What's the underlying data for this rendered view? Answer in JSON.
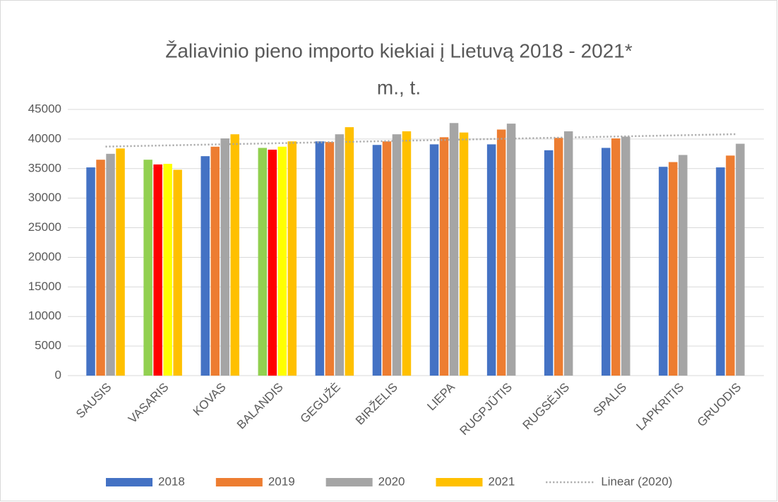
{
  "chart_data": {
    "type": "bar",
    "title_lines": [
      "Žaliavinio pieno importo kiekiai į Lietuvą 2018 - 2021*",
      "m., t."
    ],
    "categories": [
      "SAUSIS",
      "VASARIS",
      "KOVAS",
      "BALANDIS",
      "GEGUŽĖ",
      "BIRŽELIS",
      "LIEPA",
      "RUGPJŪTIS",
      "RUGSĖJIS",
      "SPALIS",
      "LAPKRITIS",
      "GRUODIS"
    ],
    "series": [
      {
        "name": "2018",
        "color": "#4472c4",
        "colors": [
          "#4472c4",
          "#92d050",
          "#4472c4",
          "#92d050",
          "#4472c4",
          "#4472c4",
          "#4472c4",
          "#4472c4",
          "#4472c4",
          "#4472c4",
          "#4472c4",
          "#4472c4"
        ],
        "values": [
          35200,
          36500,
          37100,
          38500,
          39600,
          39000,
          39100,
          39100,
          38100,
          38500,
          35300,
          35200
        ]
      },
      {
        "name": "2019",
        "color": "#ed7d31",
        "colors": [
          "#ed7d31",
          "#ff0000",
          "#ed7d31",
          "#ff0000",
          "#ed7d31",
          "#ed7d31",
          "#ed7d31",
          "#ed7d31",
          "#ed7d31",
          "#ed7d31",
          "#ed7d31",
          "#ed7d31"
        ],
        "values": [
          36500,
          35700,
          38700,
          38200,
          39500,
          39600,
          40300,
          41600,
          40200,
          40100,
          36100,
          37200
        ]
      },
      {
        "name": "2020",
        "color": "#a5a5a5",
        "colors": [
          "#a5a5a5",
          "#ffff00",
          "#a5a5a5",
          "#ffff00",
          "#a5a5a5",
          "#a5a5a5",
          "#a5a5a5",
          "#a5a5a5",
          "#a5a5a5",
          "#a5a5a5",
          "#a5a5a5",
          "#a5a5a5"
        ],
        "values": [
          37500,
          35800,
          40100,
          38700,
          40800,
          40800,
          42700,
          42600,
          41300,
          40400,
          37300,
          39200
        ]
      },
      {
        "name": "2021",
        "color": "#ffc000",
        "colors": [
          "#ffc000",
          "#ffc000",
          "#ffc000",
          "#ffc000",
          "#ffc000",
          "#ffc000",
          "#ffc000",
          null,
          null,
          null,
          null,
          null
        ],
        "values": [
          38400,
          34800,
          40800,
          39600,
          42000,
          41300,
          41100,
          null,
          null,
          null,
          null,
          null
        ]
      }
    ],
    "trendline": {
      "name": "Linear (2020)",
      "of": "2020",
      "kind": "linear",
      "color": "#a5a5a5"
    },
    "ylim": [
      0,
      45000
    ],
    "yticks": [
      0,
      5000,
      10000,
      15000,
      20000,
      25000,
      30000,
      35000,
      40000,
      45000
    ],
    "grid": true,
    "legend": "bottom"
  }
}
